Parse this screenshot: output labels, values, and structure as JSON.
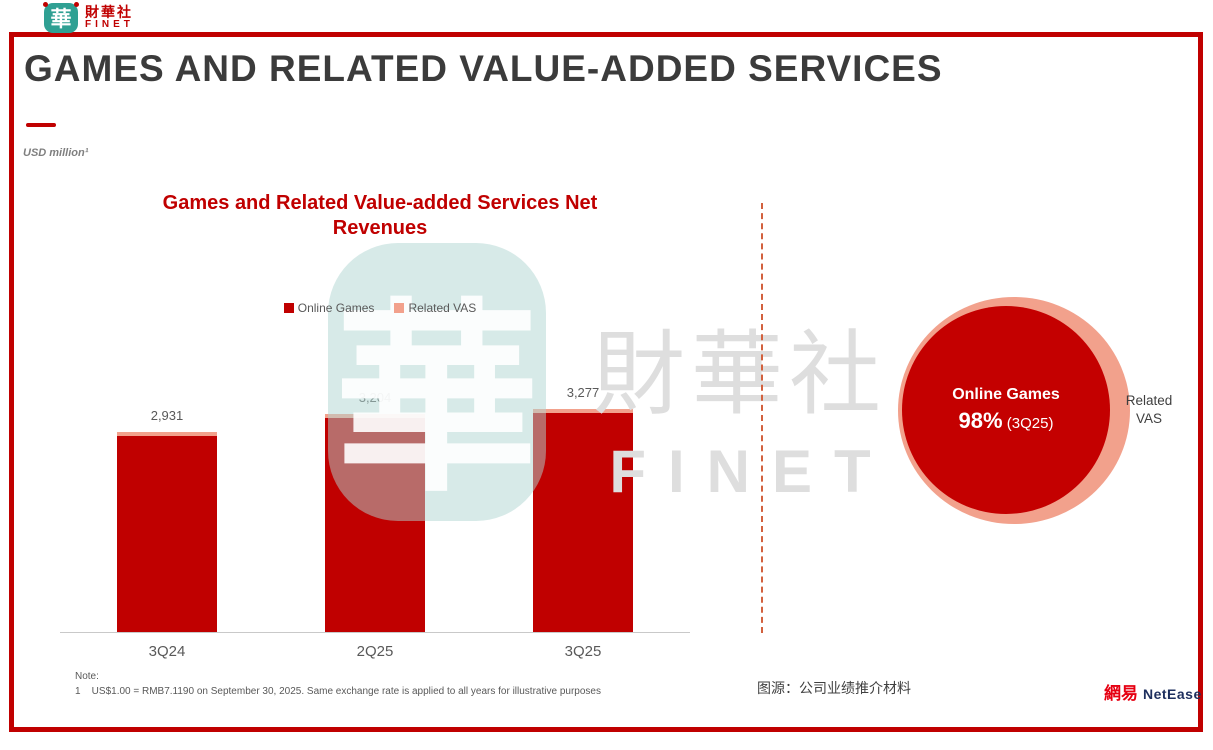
{
  "logo": {
    "glyph": "華",
    "name_cn": "財華社",
    "name_en": "FINET"
  },
  "header": {
    "title": "GAMES AND RELATED VALUE-ADDED SERVICES",
    "unit_label": "USD million¹"
  },
  "chart_data": {
    "type": "bar",
    "stacked": true,
    "title": "Games and Related Value-added Services Net Revenues",
    "categories": [
      "3Q24",
      "2Q25",
      "3Q25"
    ],
    "series": [
      {
        "name": "Online Games",
        "color": "#c00000",
        "values": [
          2872,
          3140,
          3211
        ]
      },
      {
        "name": "Related VAS",
        "color": "#f2a18c",
        "values": [
          59,
          64,
          66
        ]
      }
    ],
    "totals": [
      2931,
      3204,
      3277
    ],
    "total_labels": [
      "2,931",
      "3,204",
      "3,277"
    ],
    "xlabel": "",
    "ylabel": "USD million",
    "ylim": [
      0,
      4300
    ],
    "grid": false,
    "legend_position": "top"
  },
  "composition": {
    "inner_label": "Online Games",
    "inner_value": "98%",
    "inner_period": "(3Q25)",
    "outer_label": "Related VAS",
    "inner_color": "#c40000",
    "outer_color": "#f2a18c"
  },
  "watermark": {
    "glyph": "華",
    "text_cn": "財華社",
    "text_en": "FINET"
  },
  "footer": {
    "note_label": "Note:",
    "note_text": "1    US$1.00 = RMB7.1190 on September 30, 2025. Same exchange rate is applied to all years for illustrative purposes",
    "source": "图源：公司业绩推介材料",
    "netease_cn": "網易",
    "netease_en": "NetEase"
  },
  "colors": {
    "accent": "#c00000",
    "frame": "#c00000",
    "title_text": "#3b3b3b",
    "axis_text": "#595959",
    "divider": "#d2613e",
    "logo_teal": "#2fa093",
    "watermark_teal": "#b0d6d1"
  }
}
